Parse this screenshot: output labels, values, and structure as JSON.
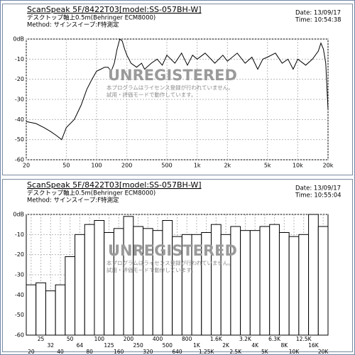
{
  "chart_data": [
    {
      "type": "line",
      "title": "ScanSpeak 5F/8422T03[model:SS-057BH-W]",
      "subtitle": "デスクトップ軸上0.5m(Behringer ECM8000)",
      "method": "Method: サインスイープ:F特測定",
      "date": "Date: 13/09/17",
      "time": "Time: 10:54:38",
      "watermark": "UNREGISTERED",
      "notes": [
        "本プログラムはライセンス登録が行われていません。",
        "試用・評価モードで動作しています。"
      ],
      "log_x": true,
      "grid": true,
      "xlim": [
        20,
        20000
      ],
      "xticks": [
        20,
        50,
        100,
        200,
        500,
        {
          "value": 1000,
          "label": "1k"
        },
        {
          "value": 2000,
          "label": "2k"
        },
        {
          "value": 5000,
          "label": "5k"
        },
        {
          "value": 10000,
          "label": "10k"
        },
        {
          "value": 20000,
          "label": "20k"
        }
      ],
      "ylim": [
        -60,
        0
      ],
      "yticks": [
        {
          "value": 0,
          "label": "0dB"
        },
        -10,
        -20,
        -30,
        -40,
        -50,
        -60
      ],
      "x": [
        20,
        25,
        30,
        35,
        40,
        45,
        50,
        60,
        70,
        80,
        90,
        100,
        110,
        120,
        130,
        140,
        150,
        160,
        170,
        180,
        190,
        200,
        220,
        250,
        280,
        300,
        350,
        400,
        450,
        500,
        600,
        700,
        800,
        900,
        1000,
        1200,
        1500,
        1800,
        2000,
        2500,
        3000,
        3500,
        4000,
        4500,
        5000,
        6000,
        7000,
        8000,
        9000,
        10000,
        12000,
        14000,
        16000,
        17000,
        18000,
        19000,
        20000
      ],
      "series": [
        {
          "color": "#000000",
          "values": [
            -41,
            -42,
            -44,
            -46,
            -48,
            -50,
            -44,
            -40,
            -33,
            -25,
            -20,
            -16,
            -15,
            -14,
            -14,
            -16,
            -12,
            -5,
            0,
            -1,
            -5,
            -8,
            -12,
            -14,
            -12,
            -15,
            -12,
            -10,
            -13,
            -8,
            -12,
            -7,
            -13,
            -8,
            -10,
            -7,
            -12,
            -8,
            -11,
            -7,
            -12,
            -9,
            -15,
            -10,
            -9,
            -7,
            -12,
            -10,
            -15,
            -10,
            -13,
            -10,
            -6,
            -2,
            -5,
            -12,
            -35
          ]
        }
      ]
    },
    {
      "type": "bar",
      "title": "ScanSpeak 5F/8422T03[model:SS-057BH-W]",
      "subtitle": "デスクトップ軸上0.5m(Behringer ECM8000)",
      "method": "Method: サインスイープ:F特測定",
      "date": "Date: 13/09/17",
      "time": "Time: 10:55:04",
      "watermark": "UNREGISTERED",
      "notes": [
        "本プログラムはライセンス登録が行われていません。",
        "試用・評価モードで動作しています。"
      ],
      "grid": true,
      "color": "#ffffff",
      "ylim": [
        -60,
        0
      ],
      "yticks": [
        {
          "value": 0,
          "label": "0dB"
        },
        -10,
        -20,
        -30,
        -40,
        -50,
        -60
      ],
      "categories": [
        "20",
        "25",
        "32",
        "40",
        "50",
        "64",
        "80",
        "100",
        "125",
        "160",
        "200",
        "250",
        "320",
        "400",
        "500",
        "640",
        "800",
        "1K",
        "1.25K",
        "1.6K",
        "2K",
        "2.5K",
        "3.2K",
        "4K",
        "5K",
        "6.3K",
        "8K",
        "10K",
        "12.5K",
        "16K",
        "20K"
      ],
      "values": [
        -35,
        -34,
        -38,
        -35,
        -21,
        -10,
        -5,
        -3,
        -9,
        -7,
        -1,
        -6,
        -7,
        -8,
        -3,
        -11,
        -10,
        -10,
        -9,
        -5,
        -10,
        -6,
        -8,
        -8,
        -6,
        -5,
        -9,
        -11,
        -10,
        0,
        -6
      ]
    }
  ]
}
